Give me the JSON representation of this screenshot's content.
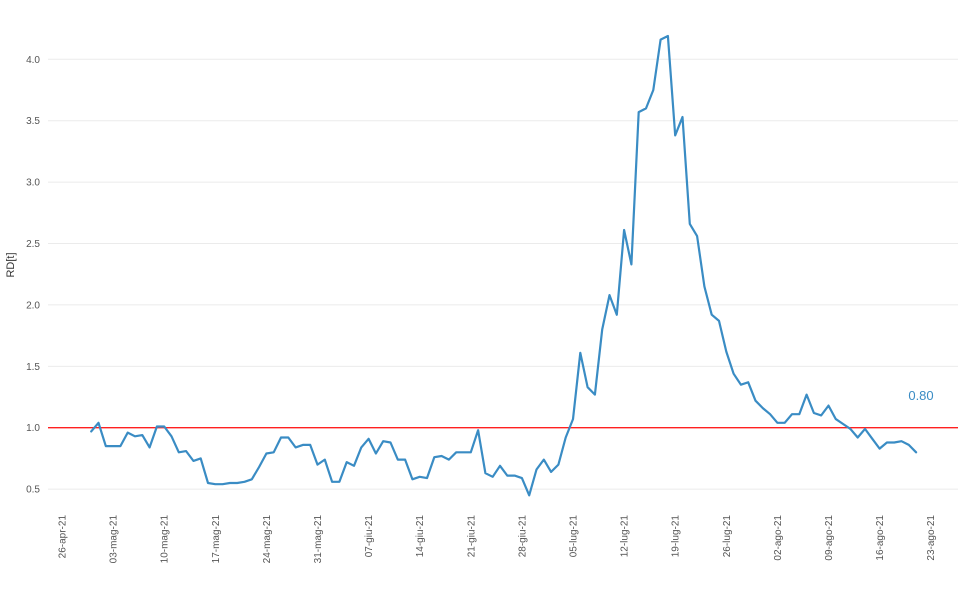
{
  "chart_data": {
    "type": "line",
    "title": "",
    "xlabel": "",
    "ylabel": "RD[t]",
    "ylim": [
      0.33,
      4.32
    ],
    "x_ticks": [
      "26-apr-21",
      "03-mag-21",
      "10-mag-21",
      "17-mag-21",
      "24-mag-21",
      "31-mag-21",
      "07-giu-21",
      "14-giu-21",
      "21-giu-21",
      "28-giu-21",
      "05-lug-21",
      "12-lug-21",
      "19-lug-21",
      "26-lug-21",
      "02-ago-21",
      "09-ago-21",
      "16-ago-21",
      "23-ago-21"
    ],
    "y_ticks": [
      "0.5",
      "1.0",
      "1.5",
      "2.0",
      "2.5",
      "3.0",
      "3.5",
      "4.0"
    ],
    "y_tick_values": [
      0.5,
      1.0,
      1.5,
      2.0,
      2.5,
      3.0,
      3.5,
      4.0
    ],
    "grid": "horizontal",
    "reference_line": {
      "y": 1.0,
      "color": "#ff2020"
    },
    "last_value_label": "0.80",
    "series": [
      {
        "color": "#3a8cc4",
        "x": [
          "2021-04-30",
          "2021-05-01",
          "2021-05-02",
          "2021-05-03",
          "2021-05-04",
          "2021-05-05",
          "2021-05-06",
          "2021-05-07",
          "2021-05-08",
          "2021-05-09",
          "2021-05-10",
          "2021-05-11",
          "2021-05-12",
          "2021-05-13",
          "2021-05-14",
          "2021-05-15",
          "2021-05-16",
          "2021-05-17",
          "2021-05-18",
          "2021-05-19",
          "2021-05-20",
          "2021-05-21",
          "2021-05-22",
          "2021-05-23",
          "2021-05-24",
          "2021-05-25",
          "2021-05-26",
          "2021-05-27",
          "2021-05-28",
          "2021-05-29",
          "2021-05-30",
          "2021-05-31",
          "2021-06-01",
          "2021-06-02",
          "2021-06-03",
          "2021-06-04",
          "2021-06-05",
          "2021-06-06",
          "2021-06-07",
          "2021-06-08",
          "2021-06-09",
          "2021-06-10",
          "2021-06-11",
          "2021-06-12",
          "2021-06-13",
          "2021-06-14",
          "2021-06-15",
          "2021-06-16",
          "2021-06-17",
          "2021-06-18",
          "2021-06-19",
          "2021-06-20",
          "2021-06-21",
          "2021-06-22",
          "2021-06-23",
          "2021-06-24",
          "2021-06-25",
          "2021-06-26",
          "2021-06-27",
          "2021-06-28",
          "2021-06-29",
          "2021-06-30",
          "2021-07-01",
          "2021-07-02",
          "2021-07-03",
          "2021-07-04",
          "2021-07-05",
          "2021-07-06",
          "2021-07-07",
          "2021-07-08",
          "2021-07-09",
          "2021-07-10",
          "2021-07-11",
          "2021-07-12",
          "2021-07-13",
          "2021-07-14",
          "2021-07-15",
          "2021-07-16",
          "2021-07-17",
          "2021-07-18",
          "2021-07-19",
          "2021-07-20",
          "2021-07-21",
          "2021-07-22",
          "2021-07-23",
          "2021-07-24",
          "2021-07-25",
          "2021-07-26",
          "2021-07-27",
          "2021-07-28",
          "2021-07-29",
          "2021-07-30",
          "2021-07-31",
          "2021-08-01",
          "2021-08-02",
          "2021-08-03",
          "2021-08-04",
          "2021-08-05",
          "2021-08-06",
          "2021-08-07",
          "2021-08-08",
          "2021-08-09",
          "2021-08-10",
          "2021-08-11",
          "2021-08-12",
          "2021-08-13",
          "2021-08-14",
          "2021-08-15",
          "2021-08-16",
          "2021-08-17",
          "2021-08-18",
          "2021-08-19",
          "2021-08-20",
          "2021-08-21"
        ],
        "y": [
          0.97,
          1.04,
          0.85,
          0.85,
          0.85,
          0.96,
          0.93,
          0.94,
          0.84,
          1.01,
          1.01,
          0.93,
          0.8,
          0.81,
          0.73,
          0.75,
          0.55,
          0.54,
          0.54,
          0.55,
          0.55,
          0.56,
          0.58,
          0.68,
          0.79,
          0.8,
          0.92,
          0.92,
          0.84,
          0.86,
          0.86,
          0.7,
          0.74,
          0.56,
          0.56,
          0.72,
          0.69,
          0.84,
          0.91,
          0.79,
          0.89,
          0.88,
          0.74,
          0.74,
          0.58,
          0.6,
          0.59,
          0.76,
          0.77,
          0.74,
          0.8,
          0.8,
          0.8,
          0.98,
          0.63,
          0.6,
          0.69,
          0.61,
          0.61,
          0.59,
          0.45,
          0.66,
          0.74,
          0.64,
          0.7,
          0.92,
          1.07,
          1.61,
          1.33,
          1.27,
          1.8,
          2.08,
          1.92,
          2.61,
          2.33,
          3.57,
          3.6,
          3.75,
          4.16,
          4.19,
          3.38,
          3.53,
          2.66,
          2.56,
          2.15,
          1.92,
          1.87,
          1.62,
          1.44,
          1.35,
          1.37,
          1.22,
          1.16,
          1.11,
          1.04,
          1.04,
          1.11,
          1.11,
          1.27,
          1.12,
          1.1,
          1.18,
          1.07,
          1.03,
          0.99,
          0.92,
          0.99,
          0.91,
          0.83,
          0.88,
          0.88,
          0.89,
          0.86,
          0.8
        ]
      }
    ]
  }
}
